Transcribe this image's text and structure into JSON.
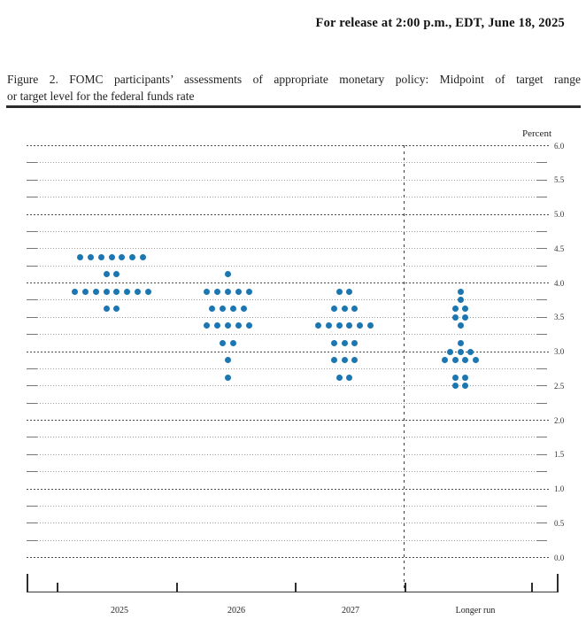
{
  "header": {
    "release_line": "For release at 2:00 p.m., EDT, June 18, 2025"
  },
  "caption": {
    "lines": [
      "Figure 2.  FOMC participants’ assessments of appropriate monetary policy:  Midpoint of target range",
      "or target level for the federal funds rate"
    ]
  },
  "chart_data": {
    "type": "scatter",
    "subtype": "fomc-dot-plot",
    "ylabel": "Percent",
    "ylim": [
      0.0,
      6.0
    ],
    "grid_step": 0.25,
    "labeled_tick_step": 0.5,
    "y_tick_labels": [
      "6.0",
      "5.5",
      "5.0",
      "4.5",
      "4.0",
      "3.5",
      "3.0",
      "2.5",
      "2.0",
      "1.5",
      "1.0",
      "0.5",
      "0.0"
    ],
    "categories": [
      "2025",
      "2026",
      "2027",
      "Longer run"
    ],
    "separator_before_category": "Longer run",
    "dot_color": "#1b76b1",
    "series": [
      {
        "name": "2025",
        "dots": [
          {
            "value": 4.375,
            "count": 7
          },
          {
            "value": 4.125,
            "count": 2
          },
          {
            "value": 3.875,
            "count": 8
          },
          {
            "value": 3.625,
            "count": 2
          }
        ]
      },
      {
        "name": "2026",
        "dots": [
          {
            "value": 4.125,
            "count": 1
          },
          {
            "value": 3.875,
            "count": 5
          },
          {
            "value": 3.625,
            "count": 4
          },
          {
            "value": 3.375,
            "count": 5
          },
          {
            "value": 3.125,
            "count": 2
          },
          {
            "value": 2.875,
            "count": 1
          },
          {
            "value": 2.625,
            "count": 1
          }
        ]
      },
      {
        "name": "2027",
        "dots": [
          {
            "value": 3.875,
            "count": 2
          },
          {
            "value": 3.625,
            "count": 3
          },
          {
            "value": 3.375,
            "count": 6
          },
          {
            "value": 3.125,
            "count": 3
          },
          {
            "value": 2.875,
            "count": 3
          },
          {
            "value": 2.625,
            "count": 2
          }
        ]
      },
      {
        "name": "Longer run",
        "dots": [
          {
            "value": 3.875,
            "count": 1
          },
          {
            "value": 3.75,
            "count": 1
          },
          {
            "value": 3.625,
            "count": 2
          },
          {
            "value": 3.5,
            "count": 2
          },
          {
            "value": 3.375,
            "count": 1
          },
          {
            "value": 3.125,
            "count": 1
          },
          {
            "value": 3.0,
            "count": 3
          },
          {
            "value": 2.875,
            "count": 4
          },
          {
            "value": 2.625,
            "count": 2
          },
          {
            "value": 2.5,
            "count": 2
          }
        ]
      }
    ]
  }
}
